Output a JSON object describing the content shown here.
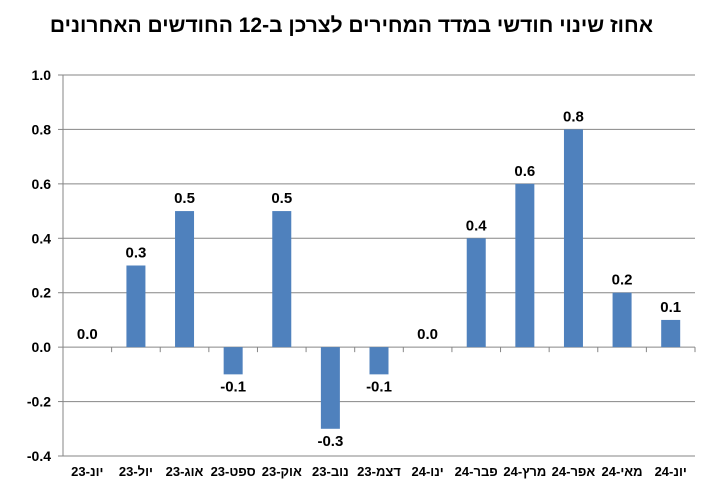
{
  "chart_data": {
    "type": "bar",
    "title": "אחוז שינוי חודשי במדד המחירים לצרכן ב-12 החודשים האחרונים",
    "categories": [
      "יונ-23",
      "יול-23",
      "אוג-23",
      "ספט-23",
      "אוק-23",
      "נוב-23",
      "דצמ-23",
      "ינו-24",
      "פבר-24",
      "מרץ-24",
      "אפר-24",
      "מאי-24",
      "יונ-24"
    ],
    "values": [
      0.0,
      0.3,
      0.5,
      -0.1,
      0.5,
      -0.3,
      -0.1,
      0.0,
      0.4,
      0.6,
      0.8,
      0.2,
      0.1
    ],
    "data_labels": [
      "0.0",
      "0.3",
      "0.5",
      "-0.1",
      "0.5",
      "-0.3",
      "-0.1",
      "0.0",
      "0.4",
      "0.6",
      "0.8",
      "0.2",
      "0.1"
    ],
    "ylim": [
      -0.4,
      1.0
    ],
    "yticks": [
      -0.4,
      -0.2,
      0.0,
      0.2,
      0.4,
      0.6,
      0.8,
      1.0
    ],
    "ytick_labels": [
      "-0.4",
      "-0.2",
      "0.0",
      "0.2",
      "0.4",
      "0.6",
      "0.8",
      "1.0"
    ],
    "xlabel": "",
    "ylabel": "",
    "grid": true,
    "legend": false,
    "bar_color": "#4f81bd",
    "grid_color": "#868686"
  }
}
